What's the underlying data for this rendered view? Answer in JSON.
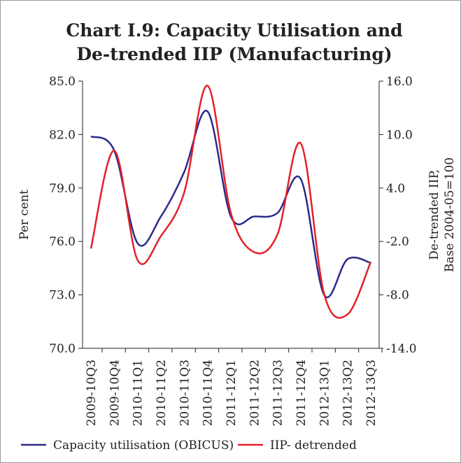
{
  "chart_data": {
    "type": "line",
    "title": [
      "Chart I.9: Capacity Utilisation and",
      "De-trended IIP (Manufacturing)"
    ],
    "ylabel": "Per cent",
    "y2label": [
      "De-trended IIP,",
      "Base 2004-05=100"
    ],
    "categories": [
      "2009-10Q3",
      "2009-10Q4",
      "2010-11Q1",
      "2010-11Q2",
      "2010-11Q3",
      "2010-11Q4",
      "2011-12Q1",
      "2011-12Q2",
      "2011-12Q3",
      "2011-12Q4",
      "2012-13Q1",
      "2012-13Q2",
      "2012-13Q3"
    ],
    "series": [
      {
        "name": "Capacity utilisation (OBICUS)",
        "color": "#2b2a8c",
        "values": [
          81.9,
          81.1,
          75.9,
          77.4,
          79.9,
          83.3,
          77.4,
          77.4,
          77.6,
          79.5,
          73.0,
          75.0,
          74.8
        ]
      },
      {
        "name": "IIP- detrended",
        "color": "#e3202a",
        "axis": "y2",
        "values": [
          -2.8,
          8.2,
          -4.1,
          -1.4,
          3.5,
          15.5,
          1.2,
          -3.2,
          -1.2,
          9.0,
          -7.9,
          -10.2,
          -4.3
        ]
      }
    ],
    "ylim": [
      70,
      85
    ],
    "yticks": [
      {
        "value": 70,
        "label": "70.0"
      },
      {
        "value": 73,
        "label": "73.0"
      },
      {
        "value": 76,
        "label": "76.0"
      },
      {
        "value": 79,
        "label": "79.0"
      },
      {
        "value": 82,
        "label": "82.0"
      },
      {
        "value": 85,
        "label": "85.0"
      }
    ],
    "y2lim": [
      -14,
      16
    ],
    "y2ticks": [
      {
        "value": -14,
        "label": "-14.0"
      },
      {
        "value": -8,
        "label": "-8.0"
      },
      {
        "value": -2,
        "label": "-2.0"
      },
      {
        "value": 4,
        "label": "4.0"
      },
      {
        "value": 10,
        "label": "10.0"
      },
      {
        "value": 16,
        "label": "16.0"
      }
    ],
    "legend": "bottom"
  }
}
